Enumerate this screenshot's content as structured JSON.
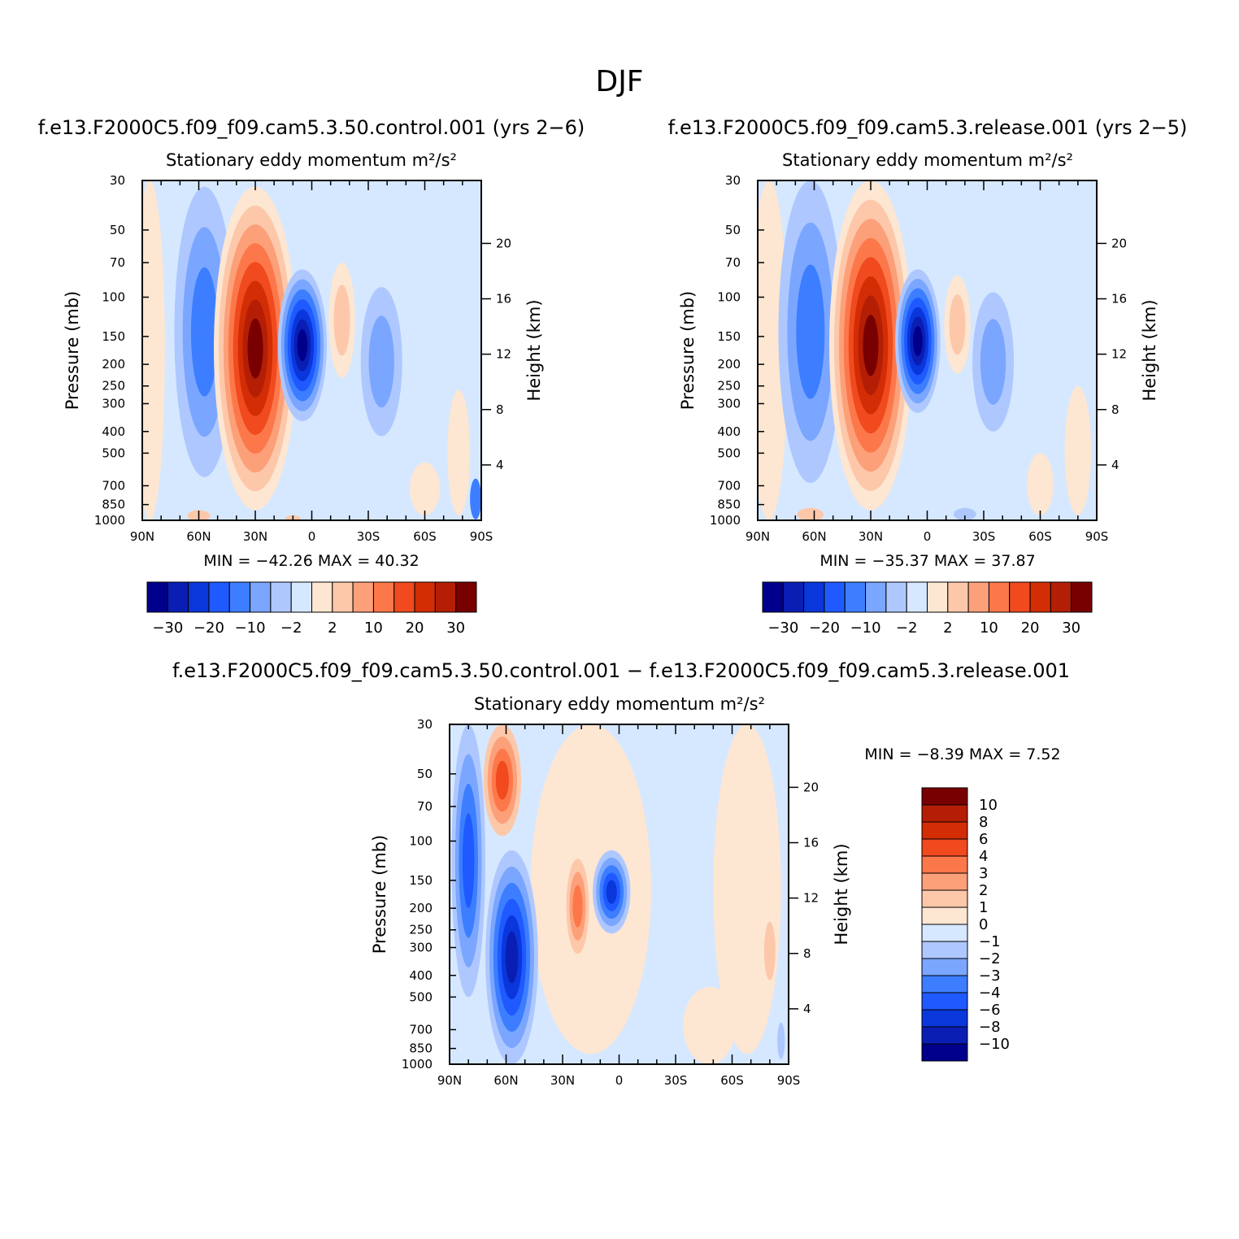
{
  "figure": {
    "title": "DJF",
    "panel_top_left_case": "f.e13.F2000C5.f09_f09.cam5.3.50.control.001  (yrs 2−6)",
    "panel_top_right_case": "f.e13.F2000C5.f09_f09.cam5.3.release.001  (yrs 2−5)",
    "panel_bottom_case": "f.e13.F2000C5.f09_f09.cam5.3.50.control.001  −  f.e13.F2000C5.f09_f09.cam5.3.release.001"
  },
  "chart_data": [
    {
      "type": "heatmap",
      "panel": "control",
      "title": "Stationary eddy momentum  m²/s²",
      "xlabel": "",
      "ylabel": "Pressure (mb)",
      "ylabel_right": "Height (km)",
      "x_ticks": [
        "90N",
        "60N",
        "30N",
        "0",
        "30S",
        "60S",
        "90S"
      ],
      "x_tick_values": [
        90,
        60,
        30,
        0,
        -30,
        -60,
        -90
      ],
      "pressure_ticks": [
        30,
        50,
        70,
        100,
        150,
        200,
        250,
        300,
        400,
        500,
        700,
        850,
        1000
      ],
      "height_ticks": [
        4,
        8,
        12,
        16,
        20
      ],
      "min_label": "MIN  =  −42.26    MAX  =    40.32",
      "min": -42.26,
      "max": 40.32,
      "colorbar_tick_labels": [
        "−30",
        "−20",
        "−10",
        "−2",
        "2",
        "10",
        "20",
        "30"
      ],
      "colorbar_levels": [
        -30,
        -25,
        -20,
        -15,
        -10,
        -5,
        -2,
        2,
        5,
        10,
        15,
        20,
        25,
        30
      ],
      "features": [
        {
          "lat": 55,
          "p": 150,
          "value": -15,
          "note": "high-latitude negative column"
        },
        {
          "lat": 30,
          "p": 220,
          "value": 38,
          "note": "subtropical positive maximum"
        },
        {
          "lat": 5,
          "p": 150,
          "value": -40,
          "note": "equatorial negative minimum"
        },
        {
          "lat": -15,
          "p": 150,
          "value": 8,
          "note": "weak positive"
        },
        {
          "lat": -40,
          "p": 180,
          "value": -10,
          "note": "southern negative"
        }
      ]
    },
    {
      "type": "heatmap",
      "panel": "release",
      "title": "Stationary eddy momentum  m²/s²",
      "xlabel": "",
      "ylabel": "Pressure (mb)",
      "ylabel_right": "Height (km)",
      "x_ticks": [
        "90N",
        "60N",
        "30N",
        "0",
        "30S",
        "60S",
        "90S"
      ],
      "x_tick_values": [
        90,
        60,
        30,
        0,
        -30,
        -60,
        -90
      ],
      "pressure_ticks": [
        30,
        50,
        70,
        100,
        150,
        200,
        250,
        300,
        400,
        500,
        700,
        850,
        1000
      ],
      "height_ticks": [
        4,
        8,
        12,
        16,
        20
      ],
      "min_label": "MIN  =  −35.37    MAX  =    37.87",
      "min": -35.37,
      "max": 37.87,
      "colorbar_tick_labels": [
        "−30",
        "−20",
        "−10",
        "−2",
        "2",
        "10",
        "20",
        "30"
      ],
      "colorbar_levels": [
        -30,
        -25,
        -20,
        -15,
        -10,
        -5,
        -2,
        2,
        5,
        10,
        15,
        20,
        25,
        30
      ],
      "features": [
        {
          "lat": 60,
          "p": 70,
          "value": -18,
          "note": "high-latitude negative column"
        },
        {
          "lat": 30,
          "p": 220,
          "value": 36,
          "note": "subtropical positive maximum"
        },
        {
          "lat": 5,
          "p": 150,
          "value": -34,
          "note": "equatorial negative minimum"
        },
        {
          "lat": -15,
          "p": 150,
          "value": 6,
          "note": "weak positive"
        },
        {
          "lat": -35,
          "p": 160,
          "value": -9,
          "note": "southern negative"
        }
      ]
    },
    {
      "type": "heatmap",
      "panel": "difference",
      "title": "Stationary eddy momentum  m²/s²",
      "xlabel": "",
      "ylabel": "Pressure (mb)",
      "ylabel_right": "Height (km)",
      "x_ticks": [
        "90N",
        "60N",
        "30N",
        "0",
        "30S",
        "60S",
        "90S"
      ],
      "x_tick_values": [
        90,
        60,
        30,
        0,
        -30,
        -60,
        -90
      ],
      "pressure_ticks": [
        30,
        50,
        70,
        100,
        150,
        200,
        250,
        300,
        400,
        500,
        700,
        850,
        1000
      ],
      "height_ticks": [
        4,
        8,
        12,
        16,
        20
      ],
      "min_label": "MIN  =    −8.39    MAX  =     7.52",
      "min": -8.39,
      "max": 7.52,
      "colorbar_tick_labels": [
        "10",
        "8",
        "6",
        "4",
        "3",
        "2",
        "1",
        "0",
        "−1",
        "−2",
        "−3",
        "−4",
        "−6",
        "−8",
        "−10"
      ],
      "colorbar_levels": [
        10,
        8,
        6,
        4,
        3,
        2,
        1,
        0,
        -1,
        -2,
        -3,
        -4,
        -6,
        -8,
        -10
      ],
      "features": [
        {
          "lat": 82,
          "p": 60,
          "value": -5,
          "note": "polar negative near top"
        },
        {
          "lat": 62,
          "p": 45,
          "value": 6,
          "note": "positive near top"
        },
        {
          "lat": 58,
          "p": 300,
          "value": -8,
          "note": "mid-latitude negative minimum"
        },
        {
          "lat": 5,
          "p": 150,
          "value": -6,
          "note": "equatorial negative"
        },
        {
          "lat": 22,
          "p": 200,
          "value": 4,
          "note": "subtropical positive"
        }
      ]
    }
  ],
  "colors": {
    "scale14": [
      "#00008c",
      "#0a1eb4",
      "#0a37dc",
      "#1e5aff",
      "#3c7eff",
      "#7aa6ff",
      "#aec8ff",
      "#d6e8ff",
      "#fde6d2",
      "#fdc8aa",
      "#fca07a",
      "#fc784a",
      "#f04a1e",
      "#d22d05",
      "#b41e05",
      "#780000"
    ],
    "scale16": [
      "#00008c",
      "#0a1eb4",
      "#0a37dc",
      "#1e5aff",
      "#3c7eff",
      "#7aa6ff",
      "#aec8ff",
      "#d6e8ff",
      "#fde6d2",
      "#fdc8aa",
      "#fca07a",
      "#fc784a",
      "#f04a1e",
      "#d22d05",
      "#b41e05",
      "#780000"
    ]
  }
}
